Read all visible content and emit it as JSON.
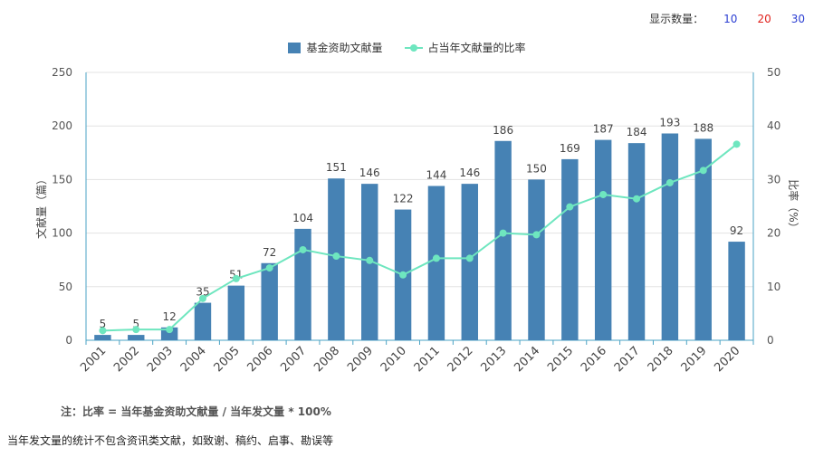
{
  "topbar": {
    "label": "显示数量：",
    "options": [
      {
        "label": "10",
        "color": "#2b3ed2"
      },
      {
        "label": "20",
        "color": "#e0201b"
      },
      {
        "label": "30",
        "color": "#2b3ed2"
      }
    ]
  },
  "note": "注：比率 = 当年基金资助文献量 / 当年发文量 * 100%",
  "footnote": "当年发文量的统计不包含资讯类文献，如致谢、稿约、启事、勘误等",
  "chart_data": {
    "type": "bar",
    "categories": [
      "2001",
      "2002",
      "2003",
      "2004",
      "2005",
      "2006",
      "2007",
      "2008",
      "2009",
      "2010",
      "2011",
      "2012",
      "2013",
      "2014",
      "2015",
      "2016",
      "2017",
      "2018",
      "2019",
      "2020"
    ],
    "series": [
      {
        "name": "基金资助文献量",
        "type": "bar",
        "axis": "left",
        "color": "#4682b4",
        "values": [
          5,
          5,
          12,
          35,
          51,
          72,
          104,
          151,
          146,
          122,
          144,
          146,
          186,
          150,
          169,
          187,
          184,
          193,
          188,
          92
        ]
      },
      {
        "name": "占当年文献量的比率",
        "type": "line",
        "axis": "right",
        "color": "#6ee6bf",
        "values": [
          1.8,
          2.0,
          2.0,
          7.8,
          11.5,
          13.5,
          16.9,
          15.7,
          14.9,
          12.2,
          15.3,
          15.3,
          20.0,
          19.7,
          24.9,
          27.2,
          26.4,
          29.4,
          31.7,
          36.6
        ]
      }
    ],
    "ylabel": "文献量（篇）",
    "y2label": "比率（%）",
    "ylim": [
      0,
      250
    ],
    "yticks": [
      0,
      50,
      100,
      150,
      200,
      250
    ],
    "y2lim": [
      0,
      50
    ],
    "y2ticks": [
      0,
      10,
      20,
      30,
      40,
      50
    ],
    "grid": true,
    "legend_position": "top-center"
  }
}
